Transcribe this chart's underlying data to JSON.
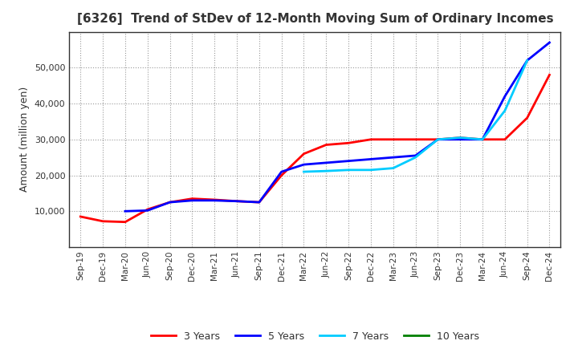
{
  "title": "[6326]  Trend of StDev of 12-Month Moving Sum of Ordinary Incomes",
  "ylabel": "Amount (million yen)",
  "background_color": "#ffffff",
  "grid_color": "#999999",
  "legend_labels": [
    "3 Years",
    "5 Years",
    "7 Years",
    "10 Years"
  ],
  "legend_colors": [
    "#ff0000",
    "#0000ff",
    "#00ccff",
    "#008000"
  ],
  "x_labels": [
    "Sep-19",
    "Dec-19",
    "Mar-20",
    "Jun-20",
    "Sep-20",
    "Dec-20",
    "Mar-21",
    "Jun-21",
    "Sep-21",
    "Dec-21",
    "Mar-22",
    "Jun-22",
    "Sep-22",
    "Dec-22",
    "Mar-23",
    "Jun-23",
    "Sep-23",
    "Dec-23",
    "Mar-24",
    "Jun-24",
    "Sep-24",
    "Dec-24"
  ],
  "ylim": [
    0,
    60000
  ],
  "yticks": [
    10000,
    20000,
    30000,
    40000,
    50000
  ],
  "series_3y": [
    8500,
    7200,
    7000,
    10500,
    12500,
    13500,
    13200,
    12800,
    12500,
    20000,
    26000,
    28500,
    29000,
    30000,
    30000,
    30000,
    30000,
    30500,
    30000,
    30000,
    36000,
    48000
  ],
  "series_5y": [
    null,
    null,
    10000,
    10200,
    12500,
    13000,
    13000,
    12800,
    12500,
    21000,
    23000,
    23500,
    24000,
    24500,
    25000,
    25500,
    30000,
    30000,
    30000,
    42000,
    52000,
    57000
  ],
  "series_7y": [
    null,
    null,
    null,
    null,
    null,
    null,
    null,
    null,
    null,
    null,
    21000,
    21200,
    21500,
    21500,
    22000,
    25000,
    30000,
    30500,
    30000,
    38000,
    52000,
    null
  ],
  "series_10y": [
    null,
    null,
    null,
    null,
    null,
    null,
    null,
    null,
    null,
    null,
    null,
    null,
    null,
    null,
    null,
    null,
    null,
    null,
    null,
    null,
    null,
    null
  ]
}
